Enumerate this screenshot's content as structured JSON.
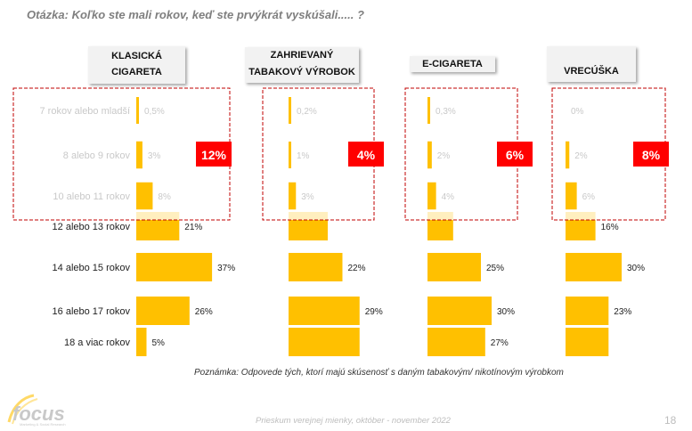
{
  "question": "Otázka: Koľko ste mali rokov, keď ste prvýkrát vyskúšali..... ?",
  "note": "Poznámka: Odpovede tých, ktorí majú skúsenosť s daným tabakovým/ nikotínovým výrobkom",
  "footer": "Prieskum verejnej mienky, október - november 2022",
  "page_number": "18",
  "logo": {
    "text": "focus",
    "subtext": "Marketing & Social Research"
  },
  "colors": {
    "bar": "#ffc000",
    "badge": "#ff0000",
    "dashed_box": "#c00000"
  },
  "chart_data": {
    "type": "bar",
    "orientation": "horizontal",
    "categories": [
      "7 rokov alebo mladší",
      "8 alebo 9 rokov",
      "10 alebo 11 rokov",
      "12 alebo 13 rokov",
      "14 alebo 15 rokov",
      "16 alebo 17 rokov",
      "18 a viac rokov"
    ],
    "series": [
      {
        "name": "KLASICKÁ CIGARETA",
        "values": [
          0.5,
          3,
          8,
          21,
          37,
          26,
          5
        ],
        "labels": [
          "0,5%",
          "3%",
          "8%",
          "21%",
          "37%",
          "26%",
          "5%"
        ],
        "highlight": "12%"
      },
      {
        "name": "ZAHRIEVANÝ TABAKOVÝ VÝROBOK",
        "values": [
          0.2,
          1,
          3,
          16,
          22,
          29,
          29
        ],
        "labels": [
          "0,2%",
          "1%",
          "3%",
          "",
          "22%",
          "29%",
          ""
        ],
        "highlight": "4%"
      },
      {
        "name": "E-CIGARETA",
        "values": [
          0.3,
          2,
          4,
          12,
          25,
          30,
          27
        ],
        "labels": [
          "0,3%",
          "2%",
          "4%",
          "",
          "25%",
          "30%",
          "27%"
        ],
        "highlight": "6%"
      },
      {
        "name": "VRECÚŠKA",
        "values": [
          0,
          2,
          6,
          16,
          30,
          23,
          23
        ],
        "labels": [
          "0%",
          "2%",
          "6%",
          "16%",
          "30%",
          "23%",
          ""
        ],
        "highlight": "8%"
      }
    ]
  }
}
